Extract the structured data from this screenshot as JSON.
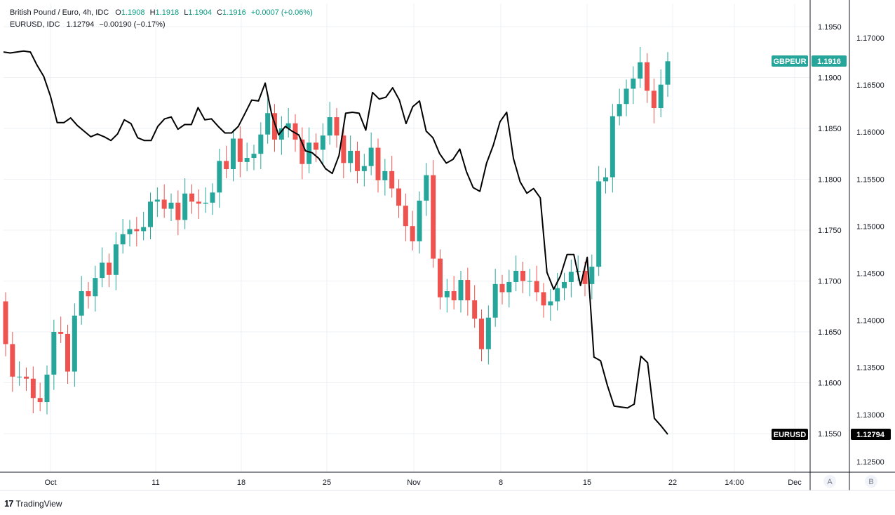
{
  "legend": {
    "gbp": {
      "name": "British Pound / Euro, 4h, IDC",
      "o_label": "O",
      "o": "1.1908",
      "h_label": "H",
      "h": "1.1918",
      "l_label": "L",
      "l": "1.1904",
      "c_label": "C",
      "c": "1.1916",
      "change": "+0.0007 (+0.06%)"
    },
    "eur": {
      "name": "EURUSD, IDC",
      "value": "1.12794",
      "change": "−0.00190 (−0.17%)"
    }
  },
  "badges": {
    "gbp_label": "GBPEUR",
    "gbp_value": "1.1916",
    "eur_label": "EURUSD",
    "eur_value": "1.12794"
  },
  "axis_buttons": {
    "a": "A",
    "b": "B"
  },
  "footer": {
    "brand": "TradingView"
  },
  "colors": {
    "up": "#26a69a",
    "down": "#ef5350",
    "line": "#000000",
    "grid": "#eef0f3"
  },
  "chart_data": {
    "type": "line",
    "x_tick_labels": [
      "Oct",
      "11",
      "18",
      "25",
      "Nov",
      "8",
      "15",
      "22",
      "14:00",
      "Dec"
    ],
    "y_left_ticks": [
      "1.1950",
      "1.1900",
      "1.1850",
      "1.1800",
      "1.1750",
      "1.1700",
      "1.1650",
      "1.1600",
      "1.1550"
    ],
    "y_right_ticks": [
      "1.17000",
      "1.16500",
      "1.16000",
      "1.15500",
      "1.15000",
      "1.14500",
      "1.14000",
      "1.13500",
      "1.13000",
      "1.12500"
    ],
    "series": [
      {
        "name": "GBPEUR",
        "kind": "candlestick",
        "close": [
          1.1638,
          1.1606,
          1.1606,
          1.1604,
          1.1585,
          1.1581,
          1.1608,
          1.165,
          1.1648,
          1.1611,
          1.1666,
          1.169,
          1.1685,
          1.1703,
          1.1718,
          1.1706,
          1.1736,
          1.1746,
          1.1751,
          1.1749,
          1.1753,
          1.1778,
          1.178,
          1.1771,
          1.1777,
          1.176,
          1.1786,
          1.1778,
          1.1776,
          1.1777,
          1.1787,
          1.1818,
          1.181,
          1.184,
          1.1817,
          1.1821,
          1.1825,
          1.1844,
          1.1865,
          1.1839,
          1.185,
          1.1855,
          1.1839,
          1.1815,
          1.1836,
          1.1829,
          1.1843,
          1.1861,
          1.1843,
          1.1816,
          1.1828,
          1.1808,
          1.1813,
          1.1831,
          1.1799,
          1.1808,
          1.1791,
          1.1774,
          1.1754,
          1.1739,
          1.1779,
          1.1804,
          1.1722,
          1.1684,
          1.169,
          1.1681,
          1.1701,
          1.1681,
          1.1663,
          1.1633,
          1.1664,
          1.1697,
          1.1689,
          1.1699,
          1.171,
          1.17,
          1.17,
          1.1689,
          1.1676,
          1.168,
          1.1693,
          1.1699,
          1.1709,
          1.171,
          1.1697,
          1.1714,
          1.1798,
          1.1802,
          1.1862,
          1.1874,
          1.1889,
          1.1899,
          1.1915,
          1.1887,
          1.187,
          1.1893,
          1.1916
        ]
      },
      {
        "name": "EURUSD",
        "kind": "line",
        "values": [
          1.1685,
          1.1684,
          1.1685,
          1.1686,
          1.1685,
          1.1671,
          1.1659,
          1.1638,
          1.161,
          1.161,
          1.1615,
          1.1607,
          1.1601,
          1.1595,
          1.1598,
          1.1595,
          1.1591,
          1.1598,
          1.1613,
          1.1609,
          1.1594,
          1.1591,
          1.1591,
          1.1606,
          1.1614,
          1.1616,
          1.1603,
          1.1608,
          1.1608,
          1.1626,
          1.1613,
          1.1614,
          1.1606,
          1.1599,
          1.1599,
          1.1606,
          1.162,
          1.1634,
          1.1633,
          1.1652,
          1.1618,
          1.1597,
          1.1606,
          1.1601,
          1.1597,
          1.158,
          1.1578,
          1.1572,
          1.1561,
          1.1556,
          1.1575,
          1.162,
          1.1621,
          1.162,
          1.1602,
          1.1642,
          1.1635,
          1.1637,
          1.1647,
          1.1634,
          1.1609,
          1.1627,
          1.1633,
          1.1601,
          1.1594,
          1.1577,
          1.1567,
          1.1571,
          1.1582,
          1.1558,
          1.1541,
          1.1537,
          1.1567,
          1.1586,
          1.1611,
          1.1621,
          1.1572,
          1.1547,
          1.1535,
          1.154,
          1.153,
          1.1451,
          1.1433,
          1.1447,
          1.147,
          1.147,
          1.1437,
          1.1467,
          1.1361,
          1.1357,
          1.1331,
          1.1309,
          1.1308,
          1.1307,
          1.1311,
          1.1362,
          1.1355,
          1.1296,
          1.1288,
          1.1279
        ]
      }
    ]
  }
}
